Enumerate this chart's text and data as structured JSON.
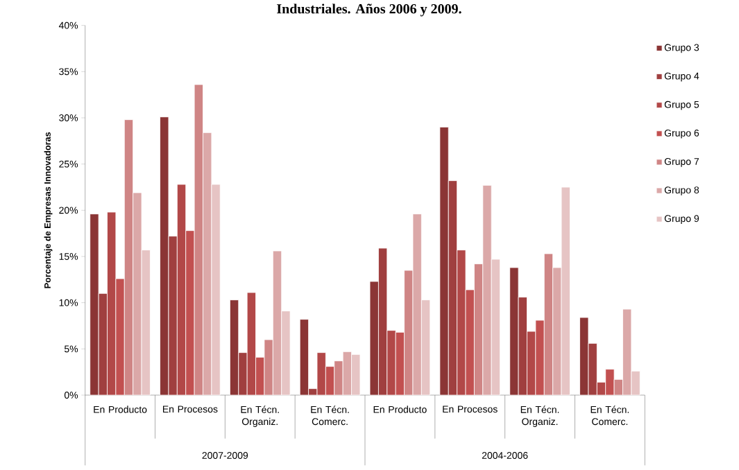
{
  "chart_data": {
    "type": "bar",
    "title": "Industriales. Años 2006 y 2009.",
    "ylabel": "Porcentaje de Empresas Innovadoras",
    "categories": [
      "En Producto",
      "En Procesos",
      "En Técn. Organiz.",
      "En Técn. Comerc.",
      "En Producto",
      "En Procesos",
      "En Técn. Organiz.",
      "En Técn. Comerc."
    ],
    "annotations": [
      "2007-2009",
      "2004-2006"
    ],
    "series": [
      {
        "name": "Grupo 3",
        "color": "#8b3535",
        "values": [
          19.6,
          30.1,
          10.3,
          8.2,
          12.3,
          29.0,
          13.8,
          8.4
        ]
      },
      {
        "name": "Grupo 4",
        "color": "#a03f3f",
        "values": [
          11.0,
          17.2,
          4.6,
          0.7,
          15.9,
          23.2,
          10.6,
          5.6
        ]
      },
      {
        "name": "Grupo 5",
        "color": "#b24848",
        "values": [
          19.8,
          22.8,
          11.1,
          4.6,
          7.0,
          15.7,
          6.9,
          1.4
        ]
      },
      {
        "name": "Grupo 6",
        "color": "#c25050",
        "values": [
          12.6,
          17.8,
          4.1,
          3.1,
          6.8,
          11.4,
          8.1,
          2.8
        ]
      },
      {
        "name": "Grupo 7",
        "color": "#cf8585",
        "values": [
          29.8,
          33.6,
          6.0,
          3.7,
          13.5,
          14.2,
          15.3,
          1.7
        ]
      },
      {
        "name": "Grupo 8",
        "color": "#dba8a8",
        "values": [
          21.9,
          28.4,
          15.6,
          4.7,
          19.6,
          22.7,
          13.8,
          9.3
        ]
      },
      {
        "name": "Grupo 9",
        "color": "#e6c4c4",
        "values": [
          15.7,
          22.8,
          9.1,
          4.4,
          10.3,
          14.7,
          22.5,
          2.6
        ]
      }
    ],
    "ylim": [
      0,
      40
    ],
    "yticks": [
      {
        "value": 0,
        "label": "0%"
      },
      {
        "value": 5,
        "label": "5%"
      },
      {
        "value": 10,
        "label": "10%"
      },
      {
        "value": 15,
        "label": "15%"
      },
      {
        "value": 20,
        "label": "20%"
      },
      {
        "value": 25,
        "label": "25%"
      },
      {
        "value": 30,
        "label": "30%"
      },
      {
        "value": 35,
        "label": "35%"
      },
      {
        "value": 40,
        "label": "40%"
      }
    ],
    "grid": false,
    "legend": "right"
  }
}
